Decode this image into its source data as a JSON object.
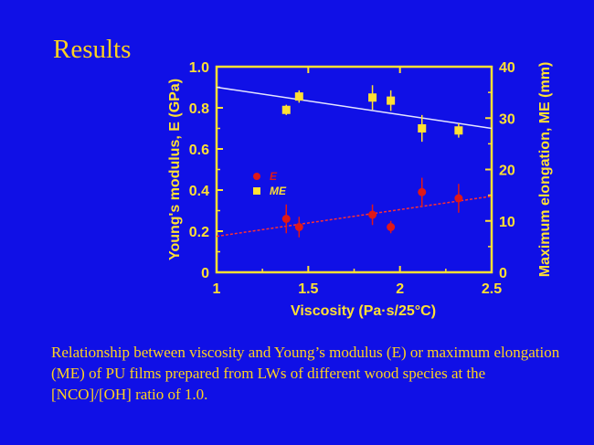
{
  "slide": {
    "title": "Results",
    "caption": "Relationship between viscosity and Young’s modulus (E) or maximum elongation (ME) of PU films prepared from LWs of different wood species at the [NCO]/[OH] ratio of 1.0."
  },
  "colors": {
    "background": "#1010e6",
    "text": "#ffd21f",
    "axis": "#ffe033",
    "series_E": "#e01818",
    "series_ME": "#ffe033",
    "trend_E": "#ff3030",
    "trend_ME": "#e6e6ff"
  },
  "chart_data": {
    "type": "scatter",
    "xlabel": "Viscosity (Pa·s/25°C)",
    "ylabel_left": "Young's modulus, E (GPa)",
    "ylabel_right": "Maximum elongation, ME (mm)",
    "xlim": [
      1,
      2.5
    ],
    "ylim_left": [
      0,
      1.0
    ],
    "ylim_right": [
      0,
      40
    ],
    "x_ticks": [
      "1",
      "1.5",
      "2",
      "2.5"
    ],
    "y_left_ticks": [
      "0",
      "0.2",
      "0.4",
      "0.6",
      "0.8",
      "1.0"
    ],
    "y_right_ticks": [
      "0",
      "10",
      "20",
      "30",
      "40"
    ],
    "legend": [
      "E",
      "ME"
    ],
    "legend_position": "middle-left",
    "series": [
      {
        "name": "E",
        "axis": "left",
        "marker": "circle",
        "points": [
          {
            "x": 1.38,
            "y": 0.26,
            "err": 0.07
          },
          {
            "x": 1.45,
            "y": 0.22,
            "err": 0.05
          },
          {
            "x": 1.85,
            "y": 0.28,
            "err": 0.05
          },
          {
            "x": 1.95,
            "y": 0.22,
            "err": 0.03
          },
          {
            "x": 2.12,
            "y": 0.39,
            "err": 0.07
          },
          {
            "x": 2.32,
            "y": 0.36,
            "err": 0.07
          }
        ],
        "trend": {
          "x": [
            1.0,
            2.5
          ],
          "y": [
            0.175,
            0.37
          ]
        }
      },
      {
        "name": "ME",
        "axis": "right",
        "marker": "square",
        "points": [
          {
            "x": 1.38,
            "y": 31.6,
            "err": 1.0
          },
          {
            "x": 1.45,
            "y": 34.2,
            "err": 1.2
          },
          {
            "x": 1.85,
            "y": 34.0,
            "err": 2.4
          },
          {
            "x": 1.95,
            "y": 33.4,
            "err": 2.0
          },
          {
            "x": 2.12,
            "y": 28.0,
            "err": 2.6
          },
          {
            "x": 2.32,
            "y": 27.6,
            "err": 1.4
          }
        ],
        "trend": {
          "x": [
            1.0,
            2.5
          ],
          "y": [
            36.0,
            28.0
          ]
        }
      }
    ]
  }
}
